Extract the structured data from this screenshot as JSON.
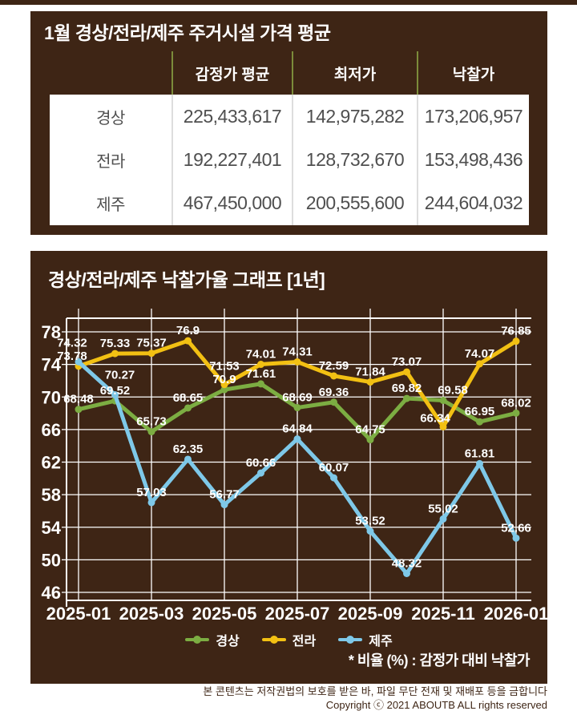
{
  "table_card": {
    "title": "1월 경상/전라/제주 주거시설 가격 평균",
    "columns": [
      "감정가 평균",
      "최저가",
      "낙찰가"
    ],
    "rows": [
      {
        "label": "경상",
        "values": [
          "225,433,617",
          "142,975,282",
          "173,206,957"
        ]
      },
      {
        "label": "전라",
        "values": [
          "192,227,401",
          "128,732,670",
          "153,498,436"
        ]
      },
      {
        "label": "제주",
        "values": [
          "467,450,000",
          "200,555,600",
          "244,604,032"
        ]
      }
    ]
  },
  "chart_card": {
    "title": "경상/전라/제주 낙찰가율 그래프 [1년]",
    "note": "* 비율 (%) : 감정가 대비 낙찰가"
  },
  "chart_data": {
    "type": "line",
    "title": "경상/전라/제주 낙찰가율 그래프 [1년]",
    "x": [
      "2025-01",
      "2025-02",
      "2025-03",
      "2025-04",
      "2025-05",
      "2025-06",
      "2025-07",
      "2025-08",
      "2025-09",
      "2025-10",
      "2025-11",
      "2025-12",
      "2026-01"
    ],
    "x_tick_labels": [
      "2025-01",
      "2025-03",
      "2025-05",
      "2025-07",
      "2025-09",
      "2025-11",
      "2026-01"
    ],
    "ylim": [
      46,
      78
    ],
    "ytick_step": 4,
    "grid": true,
    "legend_position": "bottom",
    "series": [
      {
        "name": "경상",
        "key": "gyeongsang",
        "color": "#7CAD42",
        "values": [
          68.48,
          69.52,
          65.73,
          68.65,
          70.9,
          71.61,
          68.69,
          69.36,
          64.75,
          69.82,
          69.58,
          66.95,
          68.02
        ]
      },
      {
        "name": "전라",
        "key": "jeolla",
        "color": "#F2C013",
        "values": [
          73.78,
          75.33,
          75.37,
          76.9,
          71.53,
          74.01,
          74.31,
          72.59,
          71.84,
          73.07,
          66.34,
          74.07,
          76.85
        ]
      },
      {
        "name": "제주",
        "key": "jeju",
        "color": "#7EC8E8",
        "values": [
          74.32,
          70.27,
          57.03,
          62.35,
          56.77,
          60.66,
          64.84,
          60.07,
          53.52,
          48.32,
          55.02,
          61.81,
          52.66
        ]
      }
    ]
  },
  "footer": {
    "line1": "본 콘텐츠는 저작권법의 보호를 받은 바, 파일 무단 전재 및 재배포 등을 금합니다",
    "line2": "Copyright ⓒ 2021 ABOUTB ALL rights reserved"
  },
  "colors": {
    "card_bg": "#3E2515",
    "header_divider": "#7C8C3A",
    "body_divider": "#DDDDDD",
    "table_text": "#4F4F4F",
    "gridline": "#FFFFFF"
  }
}
